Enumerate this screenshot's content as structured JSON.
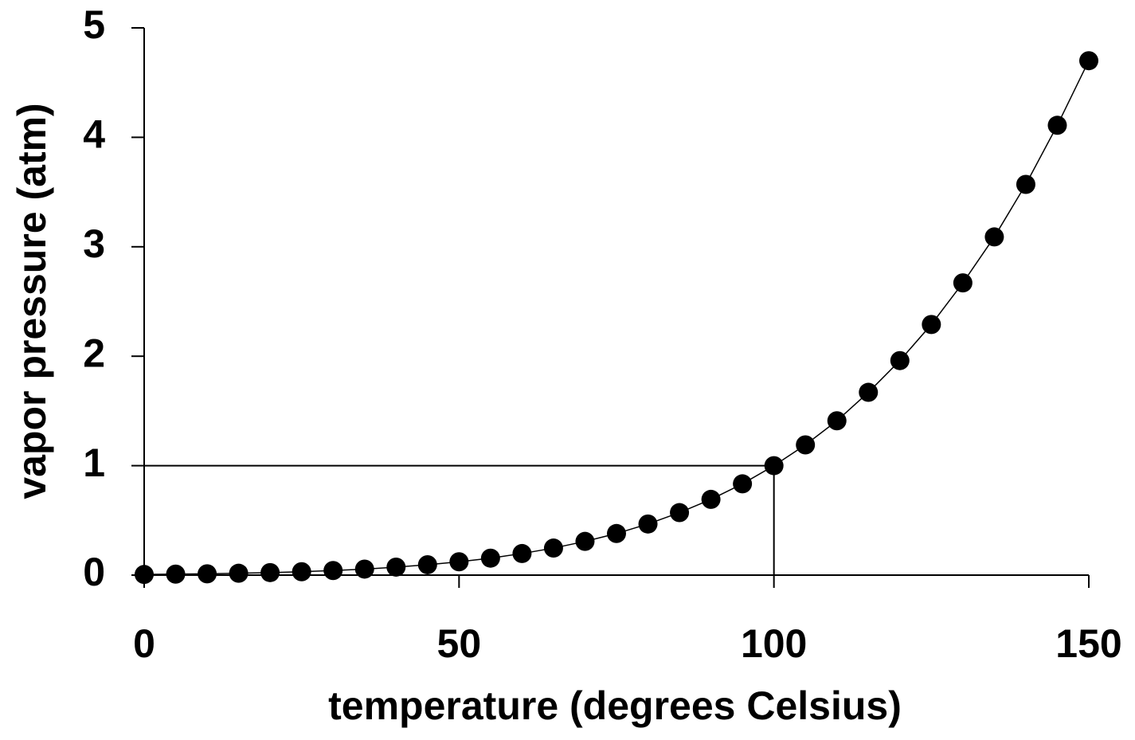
{
  "chart_data": {
    "type": "line",
    "xlabel": "temperature (degrees Celsius)",
    "ylabel": "vapor pressure (atm)",
    "x": [
      0,
      5,
      10,
      15,
      20,
      25,
      30,
      35,
      40,
      45,
      50,
      55,
      60,
      65,
      70,
      75,
      80,
      85,
      90,
      95,
      100,
      105,
      110,
      115,
      120,
      125,
      130,
      135,
      140,
      145,
      150
    ],
    "series": [
      {
        "color": "#000000",
        "values": [
          0.006,
          0.009,
          0.012,
          0.017,
          0.023,
          0.031,
          0.042,
          0.055,
          0.073,
          0.095,
          0.122,
          0.155,
          0.197,
          0.247,
          0.308,
          0.38,
          0.467,
          0.571,
          0.692,
          0.834,
          1.0,
          1.19,
          1.41,
          1.67,
          1.96,
          2.29,
          2.67,
          3.09,
          3.57,
          4.11,
          4.7
        ]
      }
    ],
    "xlim": [
      0,
      150
    ],
    "xticks": [
      0,
      50,
      100,
      150
    ],
    "ylim": [
      0,
      5
    ],
    "yticks": [
      0,
      1,
      2,
      3,
      4,
      5
    ],
    "grid": false,
    "reference": {
      "x": 100,
      "y": 1
    }
  }
}
